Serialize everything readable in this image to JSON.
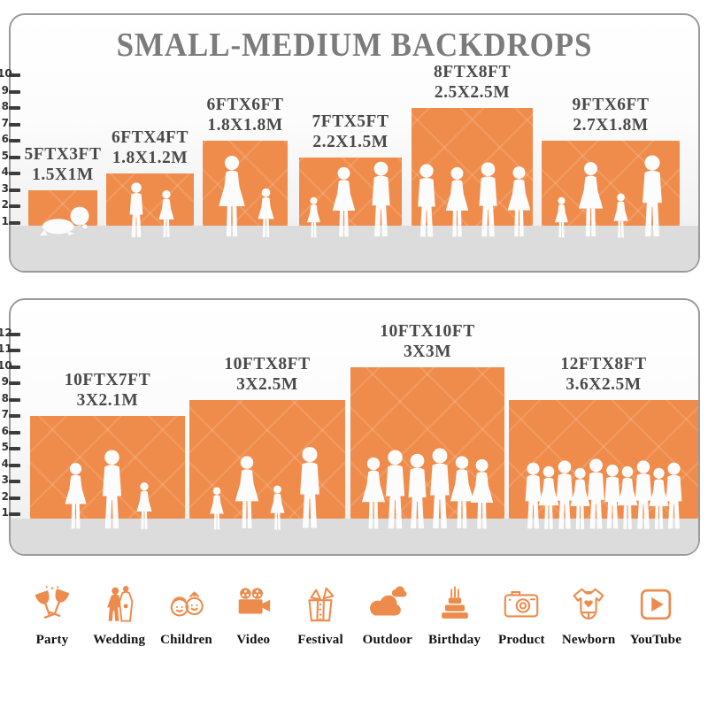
{
  "title": "SMALL-MEDIUM BACKDROPS",
  "colors": {
    "bar": "#EF8C4B",
    "icon": "#ED8B4C",
    "title": "#7B7B7B",
    "bar_label": "#4A4A4A",
    "axis": "#3C3C3C",
    "panel_border": "#9A9A9A",
    "floor": "#DCDCDC",
    "silhouette": "#FCFCFC"
  },
  "chart_data": [
    {
      "type": "bar",
      "title": "SMALL-MEDIUM BACKDROPS",
      "unit": "feet",
      "ylim": [
        0,
        10
      ],
      "grid": false,
      "legend": "none",
      "axis_ticks": [
        1,
        2,
        3,
        4,
        5,
        6,
        7,
        8,
        9,
        10
      ],
      "categories": [
        "5FTX3FT",
        "6FTX4FT",
        "6FTX6FT",
        "7FTX5FT",
        "8FTX8FT",
        "9FTX6FT"
      ],
      "values": [
        3,
        4,
        6,
        5,
        8,
        6
      ],
      "metric_labels": [
        "1.5X1M",
        "1.8X1.2M",
        "1.8X1.8M",
        "2.2X1.5M",
        "2.5X2.5M",
        "2.7X1.8M"
      ]
    },
    {
      "type": "bar",
      "title": "",
      "unit": "feet",
      "ylim": [
        0,
        12
      ],
      "grid": false,
      "legend": "none",
      "axis_ticks": [
        1,
        2,
        3,
        4,
        5,
        6,
        7,
        8,
        9,
        10,
        11,
        12
      ],
      "categories": [
        "10FTX7FT",
        "10FTX8FT",
        "10FTX10FT",
        "12FTX8FT"
      ],
      "values": [
        7,
        8,
        10,
        8
      ],
      "metric_labels": [
        "3X2.1M",
        "3X2.5M",
        "3X3M",
        "3.6X2.5M"
      ]
    }
  ],
  "categories": [
    {
      "label": "Party",
      "icon": "party-icon"
    },
    {
      "label": "Wedding",
      "icon": "wedding-icon"
    },
    {
      "label": "Children",
      "icon": "children-icon"
    },
    {
      "label": "Video",
      "icon": "video-icon"
    },
    {
      "label": "Festival",
      "icon": "festival-icon"
    },
    {
      "label": "Outdoor",
      "icon": "outdoor-icon"
    },
    {
      "label": "Birthday",
      "icon": "birthday-icon"
    },
    {
      "label": "Product",
      "icon": "product-icon"
    },
    {
      "label": "Newborn",
      "icon": "newborn-icon"
    },
    {
      "label": "YouTube",
      "icon": "youtube-icon"
    }
  ]
}
